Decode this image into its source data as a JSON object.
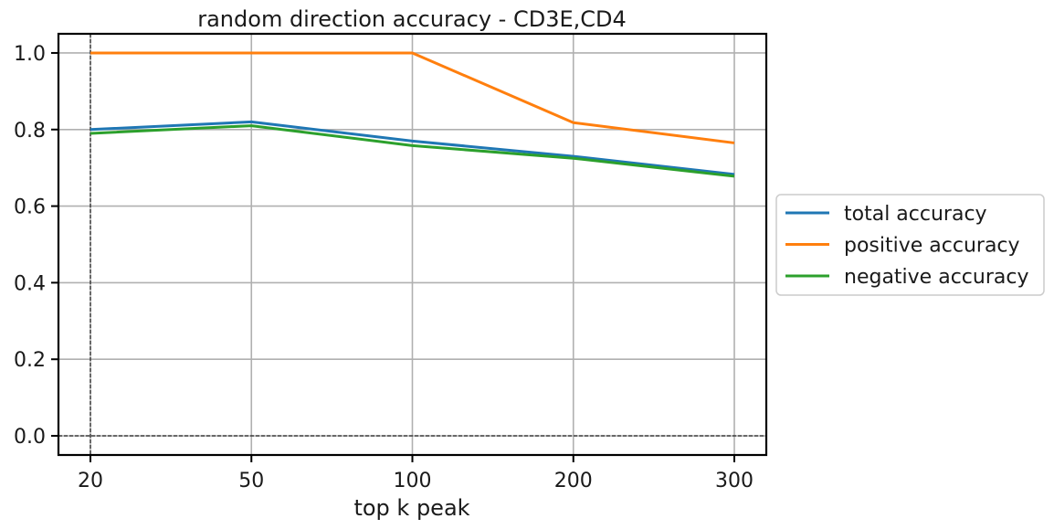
{
  "chart_data": {
    "type": "line",
    "title": "random direction accuracy - CD3E,CD4",
    "xlabel": "top k peak",
    "ylabel": "",
    "categories": [
      "20",
      "50",
      "100",
      "200",
      "300"
    ],
    "ylim": [
      -0.05,
      1.05
    ],
    "yticks": [
      "0.0",
      "0.2",
      "0.4",
      "0.6",
      "0.8",
      "1.0"
    ],
    "grid": true,
    "reference_lines": {
      "y": 0.0,
      "x_category": "20",
      "style": "dashed",
      "color": "#000000"
    },
    "legend_placement": "outside-right",
    "series": [
      {
        "name": "total accuracy",
        "color": "#1f77b4",
        "values": [
          0.8,
          0.82,
          0.77,
          0.73,
          0.683
        ]
      },
      {
        "name": "positive accuracy",
        "color": "#ff7f0e",
        "values": [
          1.0,
          1.0,
          1.0,
          0.818,
          0.765
        ]
      },
      {
        "name": "negative accuracy",
        "color": "#2ca02c",
        "values": [
          0.79,
          0.81,
          0.758,
          0.725,
          0.678
        ]
      }
    ]
  }
}
